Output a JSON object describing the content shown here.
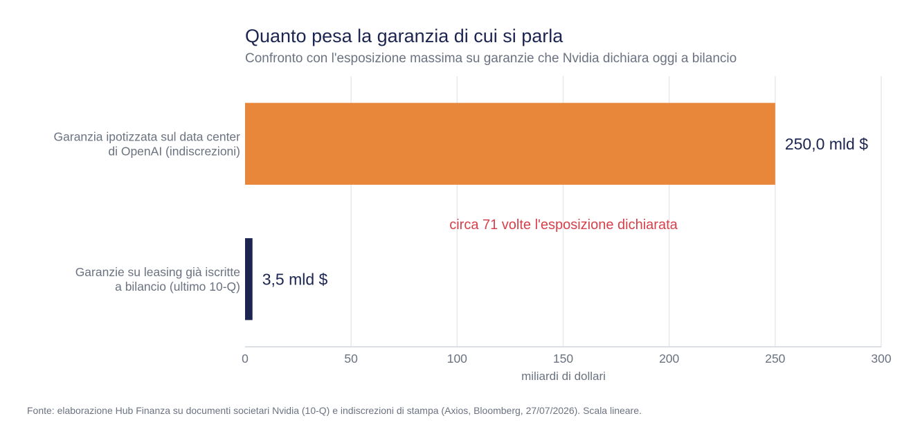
{
  "chart_data": {
    "type": "bar",
    "orientation": "horizontal",
    "title": "Quanto pesa la garanzia di cui si parla",
    "subtitle": "Confronto con l'esposizione massima su garanzie che Nvidia dichiara oggi a bilancio",
    "categories": [
      [
        "Garanzia ipotizzata sul data center",
        "di OpenAI (indiscrezioni)"
      ],
      [
        "Garanzie su leasing già iscritte",
        "a bilancio (ultimo 10-Q)"
      ]
    ],
    "values": [
      250.0,
      3.5
    ],
    "value_labels": [
      "250,0 mld $",
      "3,5 mld $"
    ],
    "bar_colors": [
      "#e8873a",
      "#1c2550"
    ],
    "xlabel": "miliardi di dollari",
    "ylabel": "",
    "xlim": [
      0,
      300
    ],
    "x_ticks": [
      0,
      50,
      100,
      150,
      200,
      250,
      300
    ],
    "grid": true,
    "annotation": "circa 71 volte l'esposizione dichiarata",
    "annotation_color": "#d6404a",
    "source": "Fonte: elaborazione Hub Finanza su documenti societari Nvidia (10-Q) e indiscrezioni di stampa (Axios, Bloomberg, 27/07/2026). Scala lineare."
  }
}
